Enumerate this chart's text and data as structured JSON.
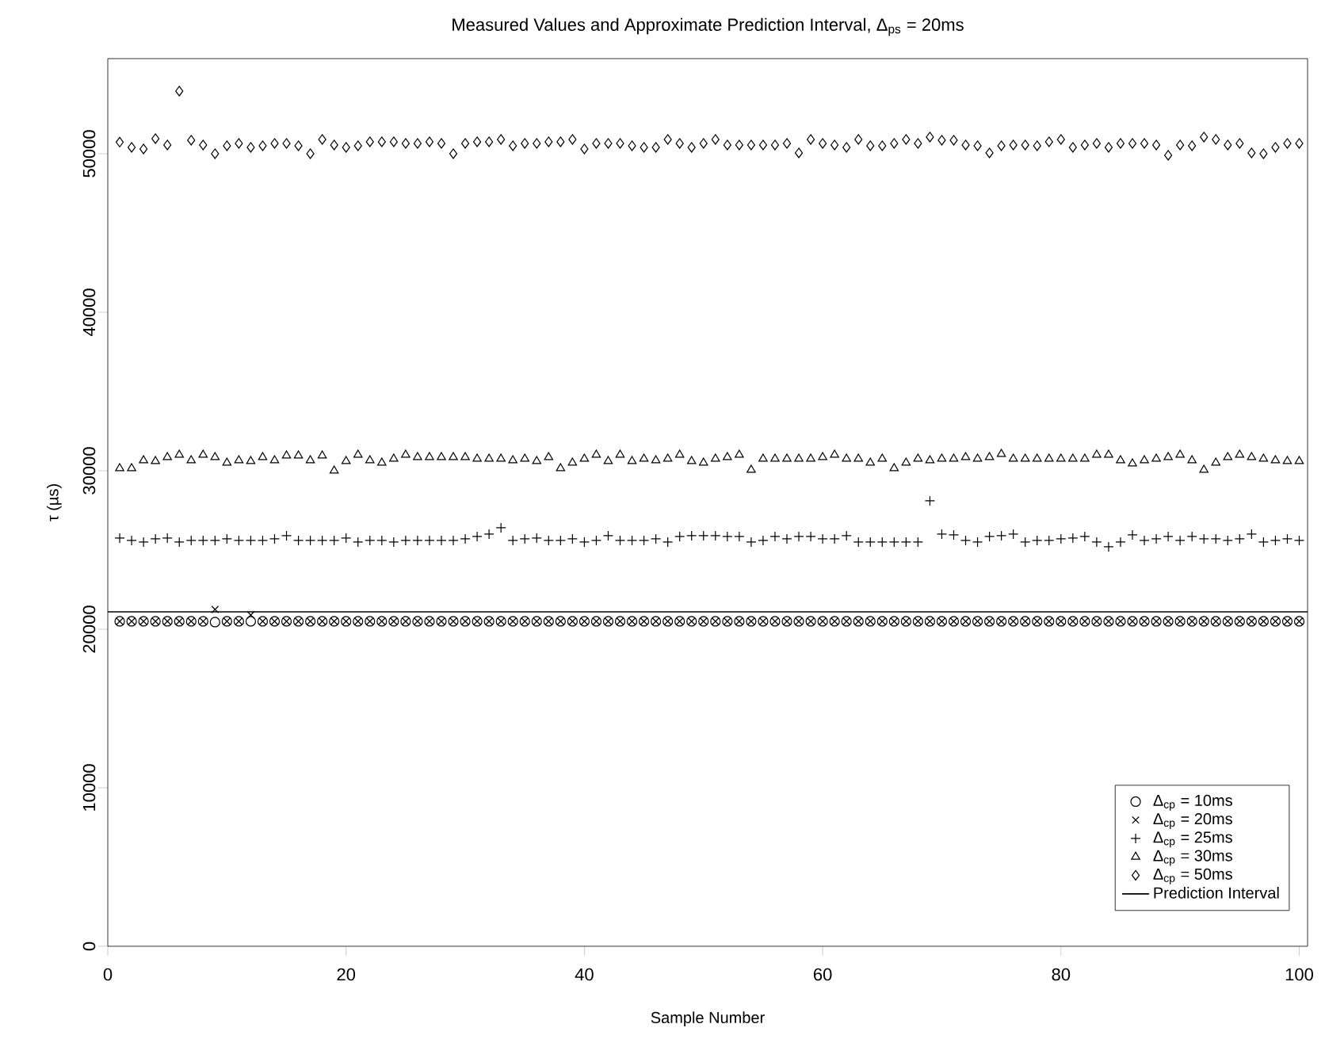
{
  "chart_data": {
    "type": "scatter",
    "title": "Measured Values and Approximate Prediction Interval, Δ$_{ps}$ = 20ms",
    "xlabel": "Sample Number",
    "ylabel": "τ (µs)",
    "x": [
      1,
      2,
      3,
      4,
      5,
      6,
      7,
      8,
      9,
      10,
      11,
      12,
      13,
      14,
      15,
      16,
      17,
      18,
      19,
      20,
      21,
      22,
      23,
      24,
      25,
      26,
      27,
      28,
      29,
      30,
      31,
      32,
      33,
      34,
      35,
      36,
      37,
      38,
      39,
      40,
      41,
      42,
      43,
      44,
      45,
      46,
      47,
      48,
      49,
      50,
      51,
      52,
      53,
      54,
      55,
      56,
      57,
      58,
      59,
      60,
      61,
      62,
      63,
      64,
      65,
      66,
      67,
      68,
      69,
      70,
      71,
      72,
      73,
      74,
      75,
      76,
      77,
      78,
      79,
      80,
      81,
      82,
      83,
      84,
      85,
      86,
      87,
      88,
      89,
      90,
      91,
      92,
      93,
      94,
      95,
      96,
      97,
      98,
      99,
      100
    ],
    "xlim": [
      0,
      100.7
    ],
    "xticks": [
      0,
      20,
      40,
      60,
      80,
      100
    ],
    "ylim": [
      0,
      56000
    ],
    "yticks": [
      0,
      10000,
      20000,
      30000,
      40000,
      50000
    ],
    "grid": false,
    "legend": "bottom right",
    "series": [
      {
        "name": "Δ$_{cp}$ = 10ms",
        "color": "#000000",
        "marker": "circle",
        "values": [
          20500,
          20500,
          20500,
          20500,
          20500,
          20500,
          20500,
          20500,
          20450,
          20500,
          20500,
          20500,
          20500,
          20500,
          20500,
          20500,
          20500,
          20500,
          20500,
          20500,
          20500,
          20500,
          20500,
          20500,
          20500,
          20500,
          20500,
          20500,
          20500,
          20500,
          20500,
          20500,
          20500,
          20500,
          20500,
          20500,
          20500,
          20500,
          20500,
          20500,
          20500,
          20500,
          20500,
          20500,
          20500,
          20500,
          20500,
          20500,
          20500,
          20500,
          20500,
          20500,
          20500,
          20500,
          20500,
          20500,
          20500,
          20500,
          20500,
          20500,
          20500,
          20500,
          20500,
          20500,
          20500,
          20500,
          20500,
          20500,
          20500,
          20500,
          20500,
          20500,
          20500,
          20500,
          20500,
          20500,
          20500,
          20500,
          20500,
          20500,
          20500,
          20500,
          20500,
          20500,
          20500,
          20500,
          20500,
          20500,
          20500,
          20500,
          20500,
          20500,
          20500,
          20500,
          20500,
          20500,
          20500,
          20500,
          20500,
          20500
        ]
      },
      {
        "name": "Δ$_{cp}$ = 20ms",
        "color": "#000000",
        "marker": "cross",
        "values": [
          20500,
          20500,
          20500,
          20500,
          20500,
          20500,
          20500,
          20500,
          21250,
          20500,
          20500,
          20900,
          20500,
          20500,
          20500,
          20500,
          20500,
          20500,
          20500,
          20500,
          20500,
          20500,
          20500,
          20500,
          20500,
          20500,
          20500,
          20500,
          20500,
          20500,
          20500,
          20500,
          20500,
          20500,
          20500,
          20500,
          20500,
          20500,
          20500,
          20500,
          20500,
          20500,
          20500,
          20500,
          20500,
          20500,
          20500,
          20500,
          20500,
          20500,
          20500,
          20500,
          20500,
          20500,
          20500,
          20500,
          20500,
          20500,
          20500,
          20500,
          20500,
          20500,
          20500,
          20500,
          20500,
          20500,
          20500,
          20500,
          20500,
          20500,
          20500,
          20500,
          20500,
          20500,
          20500,
          20500,
          20500,
          20500,
          20500,
          20500,
          20500,
          20500,
          20500,
          20500,
          20500,
          20500,
          20500,
          20500,
          20500,
          20500,
          20500,
          20500,
          20500,
          20500,
          20500,
          20500,
          20500,
          20500,
          20500,
          20500
        ]
      },
      {
        "name": "Δ$_{cp}$ = 25ms",
        "color": "#000000",
        "marker": "plus",
        "values": [
          25750,
          25600,
          25500,
          25700,
          25750,
          25500,
          25600,
          25600,
          25600,
          25700,
          25600,
          25600,
          25600,
          25700,
          25900,
          25600,
          25600,
          25600,
          25600,
          25750,
          25500,
          25600,
          25600,
          25500,
          25600,
          25600,
          25600,
          25600,
          25600,
          25700,
          25850,
          26000,
          26400,
          25600,
          25700,
          25750,
          25600,
          25600,
          25700,
          25500,
          25600,
          25900,
          25600,
          25600,
          25600,
          25700,
          25500,
          25850,
          25900,
          25900,
          25900,
          25850,
          25850,
          25500,
          25600,
          25850,
          25700,
          25850,
          25850,
          25700,
          25700,
          25900,
          25500,
          25500,
          25500,
          25500,
          25500,
          25500,
          28100,
          26000,
          25950,
          25600,
          25500,
          25850,
          25900,
          26000,
          25500,
          25600,
          25600,
          25700,
          25750,
          25850,
          25500,
          25200,
          25500,
          25950,
          25600,
          25700,
          25850,
          25600,
          25850,
          25700,
          25700,
          25600,
          25700,
          26000,
          25500,
          25600,
          25700,
          25600
        ]
      },
      {
        "name": "Δ$_{cp}$ = 30ms",
        "color": "#000000",
        "marker": "triangle",
        "values": [
          30150,
          30150,
          30650,
          30600,
          30850,
          31000,
          30650,
          31000,
          30850,
          30500,
          30650,
          30600,
          30850,
          30650,
          30950,
          30950,
          30650,
          30950,
          30000,
          30600,
          31000,
          30650,
          30500,
          30750,
          31000,
          30850,
          30850,
          30850,
          30850,
          30850,
          30750,
          30750,
          30750,
          30650,
          30750,
          30600,
          30850,
          30150,
          30500,
          30750,
          31000,
          30600,
          31000,
          30600,
          30750,
          30650,
          30750,
          31000,
          30600,
          30500,
          30750,
          30850,
          31000,
          30050,
          30750,
          30750,
          30750,
          30750,
          30750,
          30850,
          31000,
          30750,
          30750,
          30500,
          30750,
          30150,
          30500,
          30750,
          30650,
          30750,
          30750,
          30850,
          30750,
          30850,
          31050,
          30750,
          30750,
          30750,
          30750,
          30750,
          30750,
          30750,
          31000,
          31000,
          30650,
          30450,
          30650,
          30750,
          30850,
          31000,
          30650,
          30050,
          30500,
          30850,
          31000,
          30850,
          30750,
          30650,
          30600,
          30600
        ]
      },
      {
        "name": "Δ$_{cp}$ = 50ms",
        "color": "#000000",
        "marker": "diamond",
        "values": [
          50730,
          50400,
          50300,
          50950,
          50550,
          53950,
          50850,
          50550,
          50000,
          50500,
          50650,
          50400,
          50500,
          50650,
          50650,
          50500,
          50000,
          50900,
          50550,
          50400,
          50500,
          50750,
          50750,
          50750,
          50650,
          50650,
          50750,
          50650,
          50000,
          50650,
          50750,
          50750,
          50900,
          50500,
          50650,
          50650,
          50750,
          50750,
          50900,
          50300,
          50650,
          50650,
          50650,
          50500,
          50400,
          50400,
          50900,
          50650,
          50400,
          50650,
          50900,
          50550,
          50550,
          50550,
          50550,
          50550,
          50650,
          50050,
          50900,
          50650,
          50550,
          50400,
          50900,
          50500,
          50500,
          50650,
          50900,
          50650,
          51050,
          50850,
          50850,
          50550,
          50500,
          50050,
          50500,
          50550,
          50550,
          50500,
          50750,
          50900,
          50400,
          50550,
          50650,
          50400,
          50650,
          50650,
          50650,
          50550,
          49900,
          50550,
          50500,
          51050,
          50900,
          50550,
          50650,
          50050,
          50000,
          50400,
          50650,
          50650
        ]
      }
    ],
    "ref_lines": [
      {
        "axis": "y",
        "value": 21100,
        "label": "Prediction Interval"
      }
    ]
  }
}
